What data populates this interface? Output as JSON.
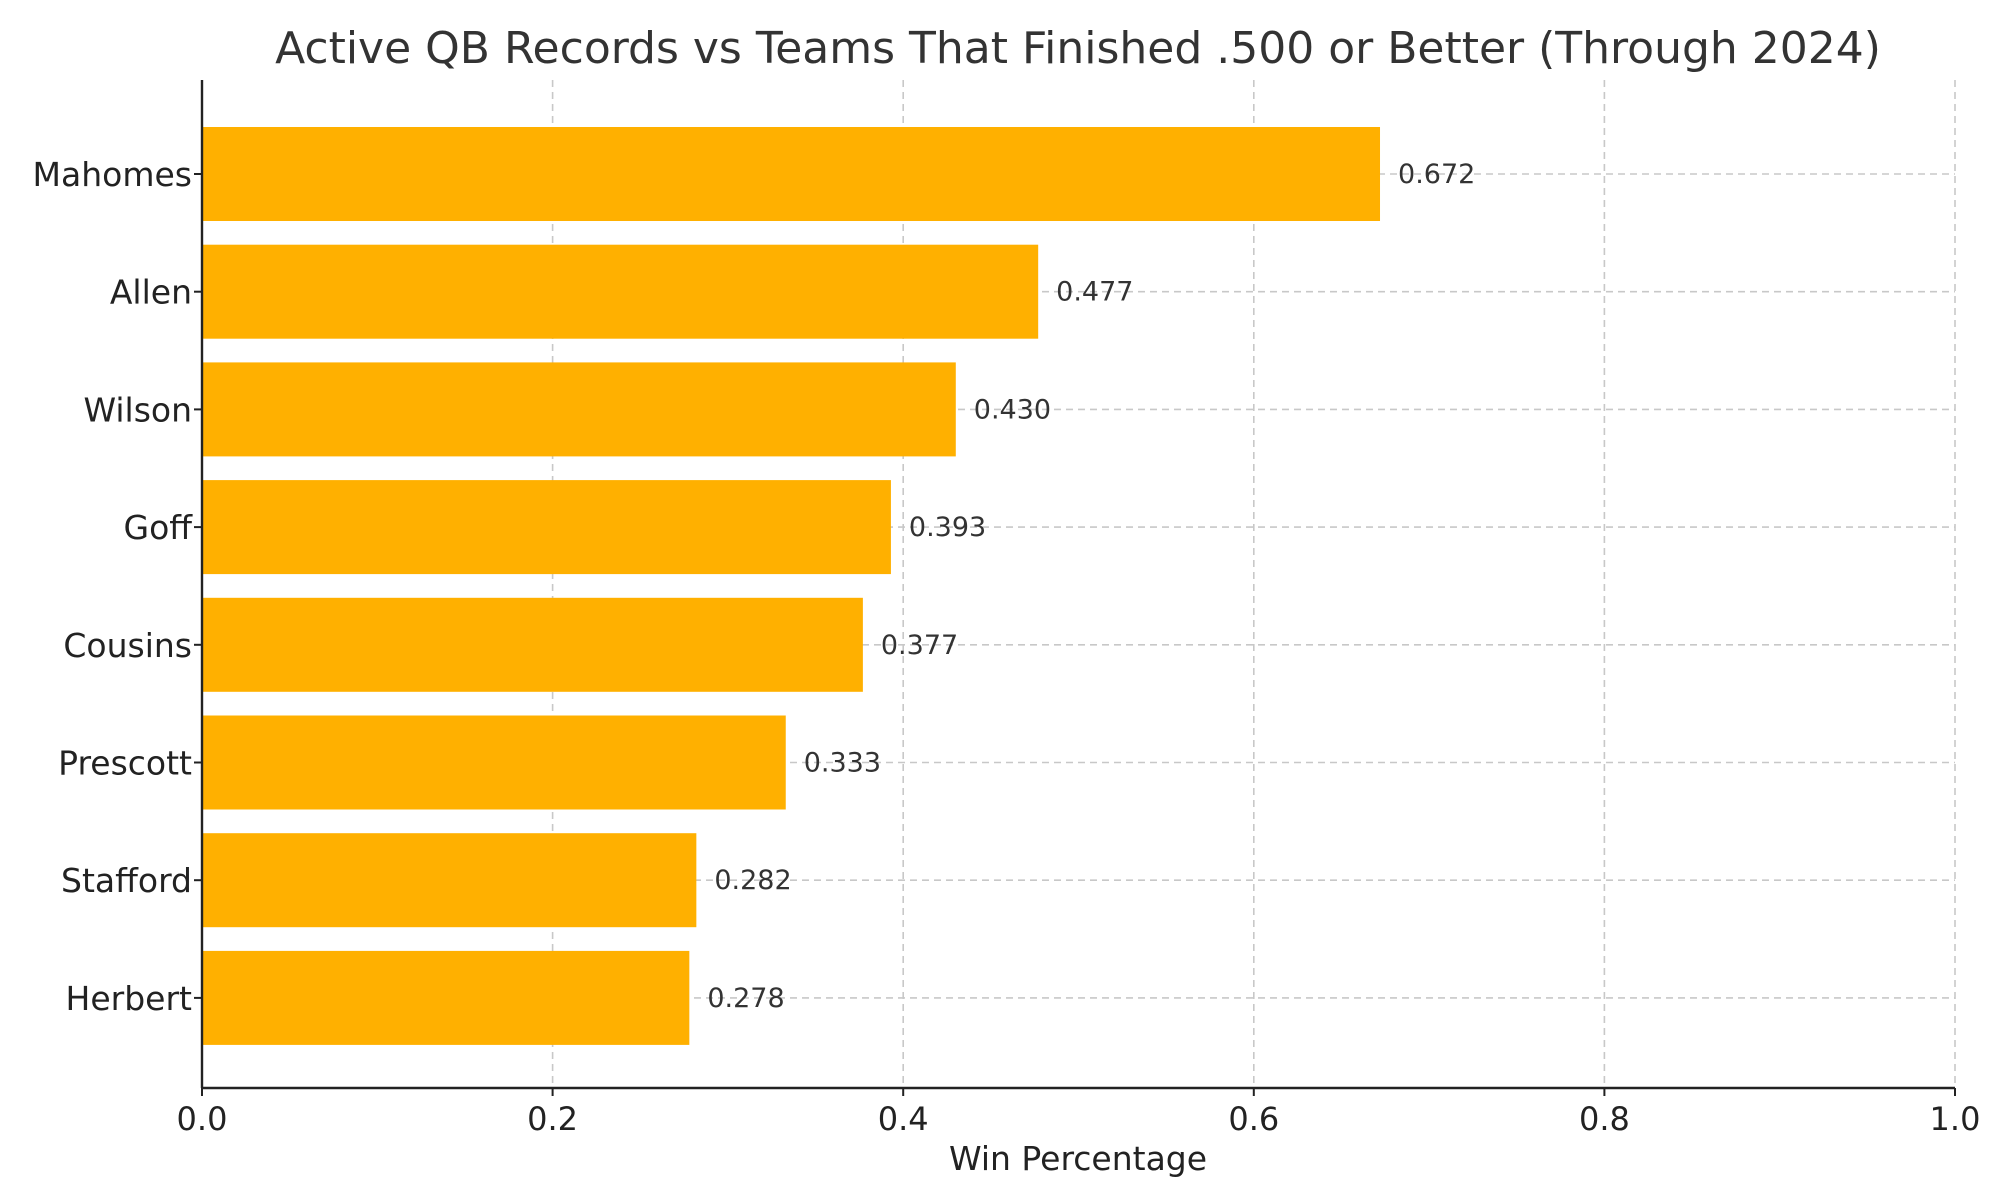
{
  "chart_data": {
    "type": "bar",
    "orientation": "horizontal",
    "title": "Active QB Records vs Teams That Finished .500 or Better (Through 2024)",
    "xlabel": "Win Percentage",
    "ylabel": "",
    "xlim": [
      0,
      1.0
    ],
    "xticks": [
      0.0,
      0.2,
      0.4,
      0.6,
      0.8,
      1.0
    ],
    "xtick_labels": [
      "0.0",
      "0.2",
      "0.4",
      "0.6",
      "0.8",
      "1.0"
    ],
    "grid": true,
    "bar_color": "#FFB000",
    "categories": [
      "Mahomes",
      "Allen",
      "Wilson",
      "Goff",
      "Cousins",
      "Prescott",
      "Stafford",
      "Herbert"
    ],
    "values": [
      0.672,
      0.477,
      0.43,
      0.393,
      0.377,
      0.333,
      0.282,
      0.278
    ],
    "value_labels": [
      "0.672",
      "0.477",
      "0.430",
      "0.393",
      "0.377",
      "0.333",
      "0.282",
      "0.278"
    ]
  }
}
